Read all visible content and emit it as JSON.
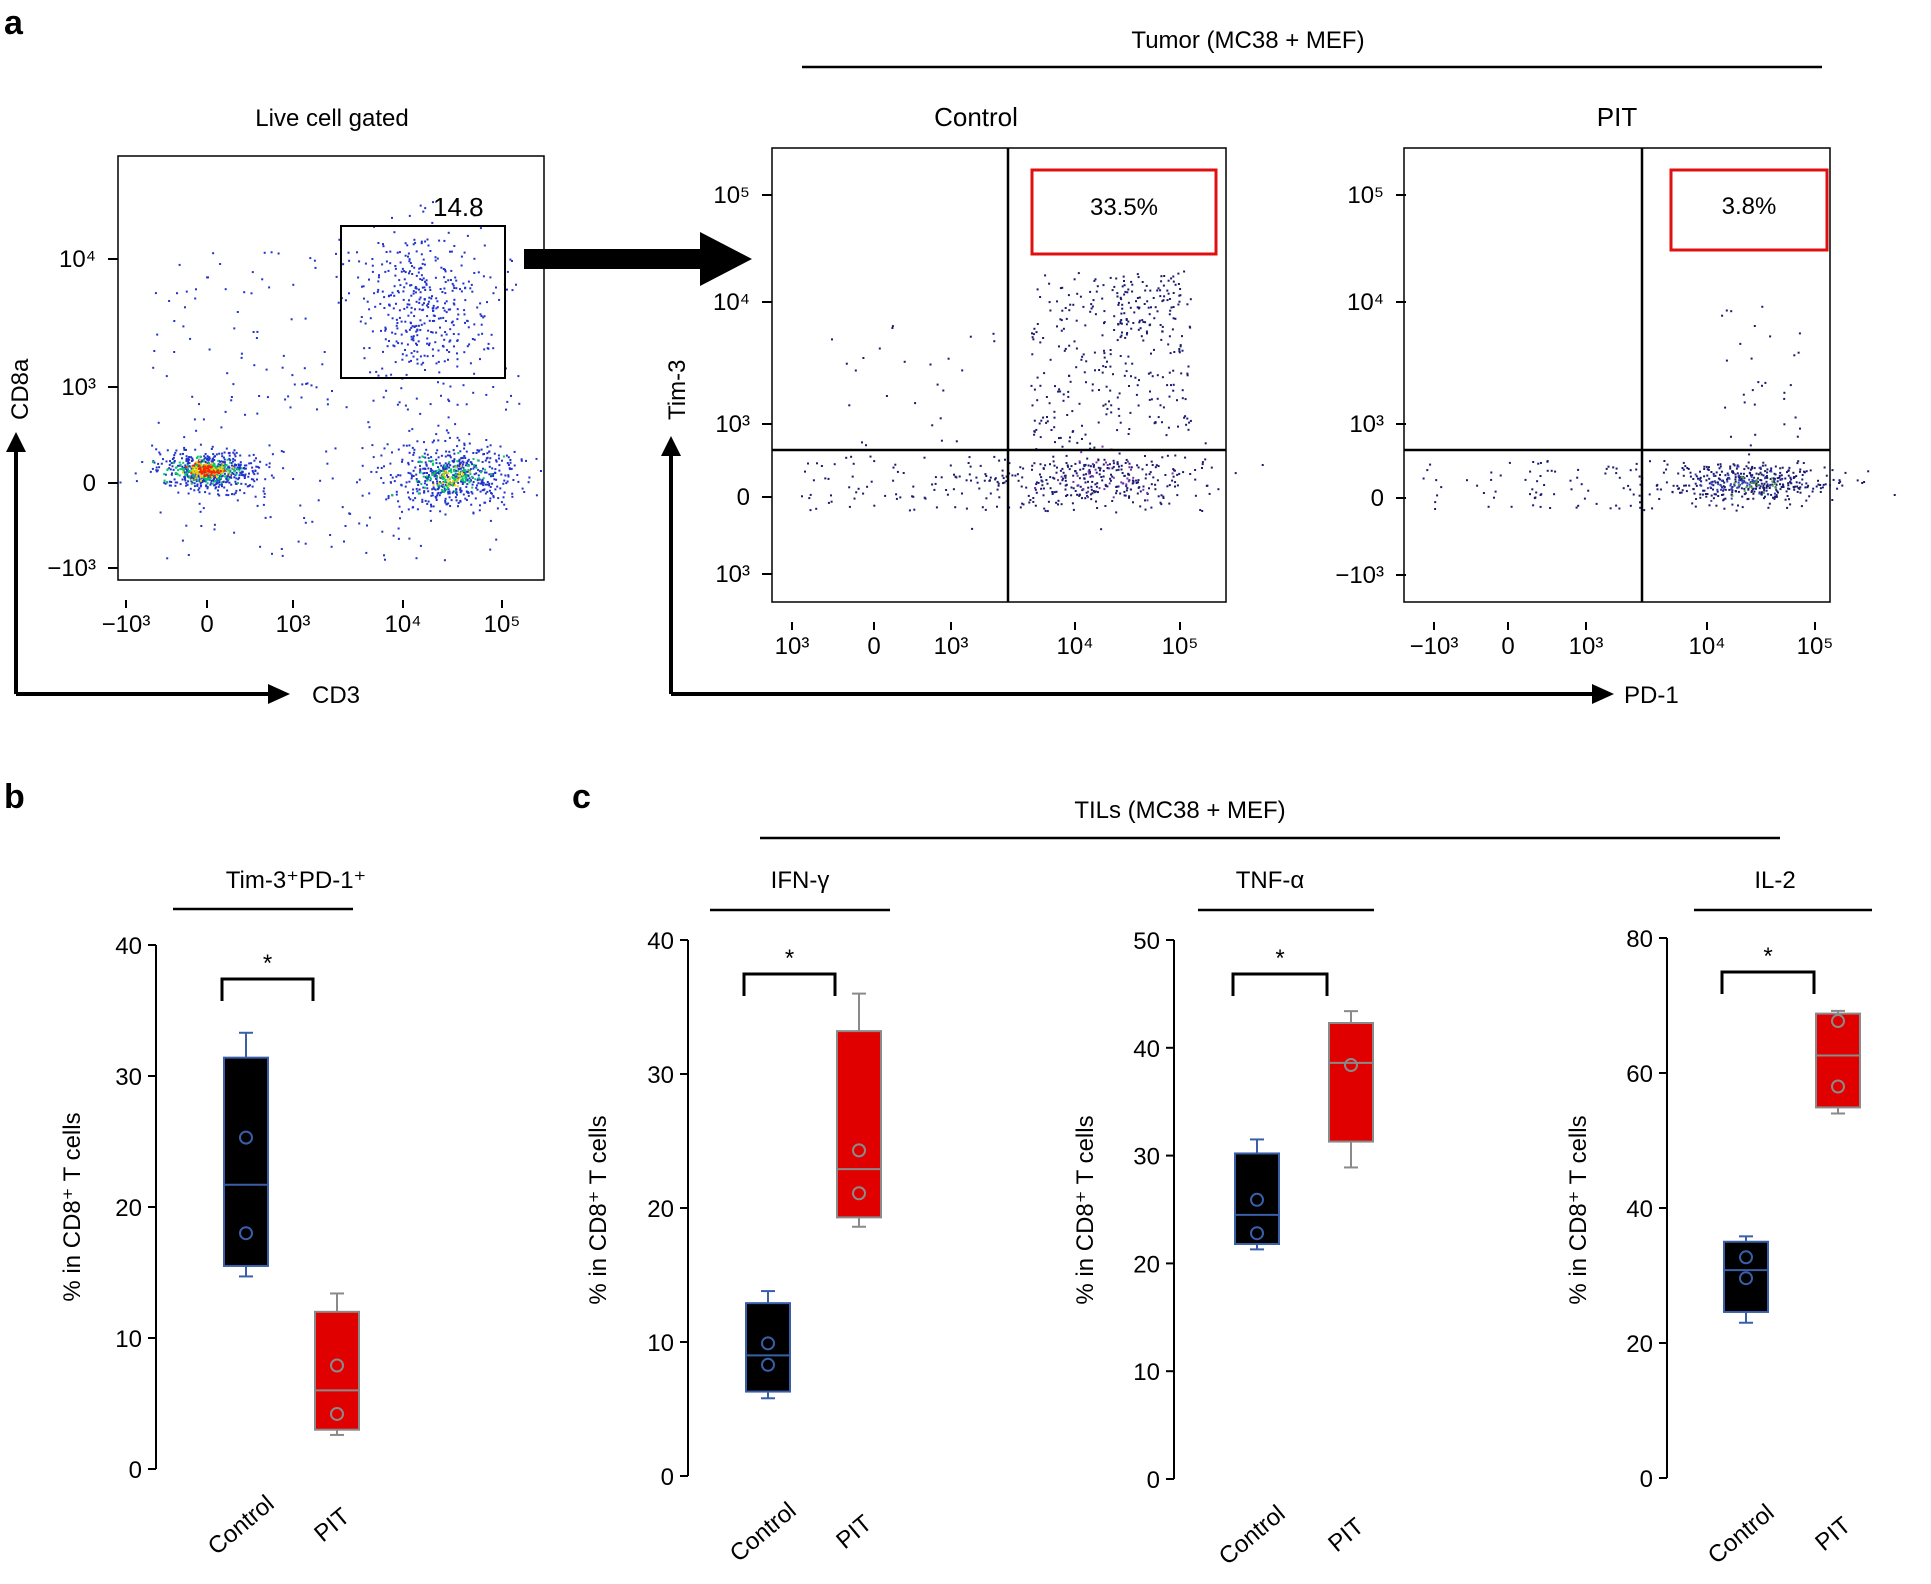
{
  "figure": {
    "panel_a_label": "a",
    "panel_b_label": "b",
    "panel_c_label": "c"
  },
  "chart_data": [
    {
      "type": "scatter",
      "panel": "a",
      "id": "flow-live",
      "title": "Live cell gated",
      "xlabel": "CD3",
      "ylabel": "CD8a",
      "x_ticks": [
        "−10³",
        "0",
        "10³",
        "10⁴",
        "10⁵"
      ],
      "y_ticks": [
        "−10³",
        "0",
        "10³",
        "10⁴"
      ],
      "gate_label": "14.8",
      "colors": {
        "dots": "#2233cc",
        "hot": "#ff2200",
        "warm": "#ffcc00",
        "mid": "#00cc66"
      }
    },
    {
      "type": "scatter",
      "panel": "a",
      "id": "flow-control",
      "group_title": "Tumor (MC38 + MEF)",
      "title": "Control",
      "xlabel": "PD-1",
      "ylabel": "Tim-3",
      "x_ticks": [
        "10³",
        "0",
        "10³",
        "10⁴",
        "10⁵"
      ],
      "y_ticks": [
        "10⁵",
        "10⁴",
        "10³",
        "0",
        "10³"
      ],
      "quadrant_label": "33.5%",
      "colors": {
        "gate": "#e01010",
        "dots": "#1a1a6e"
      }
    },
    {
      "type": "scatter",
      "panel": "a",
      "id": "flow-pit",
      "title": "PIT",
      "x_ticks": [
        "−10³",
        "0",
        "10³",
        "10⁴",
        "10⁵"
      ],
      "y_ticks": [
        "10⁵",
        "10⁴",
        "10³",
        "0",
        "−10³"
      ],
      "quadrant_label": "3.8%",
      "colors": {
        "gate": "#e01010",
        "dots": "#1a1a6e"
      }
    },
    {
      "type": "box",
      "panel": "b",
      "id": "box-tim3pd1",
      "title": "Tim-3⁺PD-1⁺",
      "ylabel": "% in CD8⁺ T cells",
      "ylim": [
        0,
        40
      ],
      "y_ticks": [
        0,
        10,
        20,
        30,
        40
      ],
      "categories": [
        "Control",
        "PIT"
      ],
      "significance": "*",
      "boxes": [
        {
          "name": "Control",
          "min": 14.7,
          "q1": 15.5,
          "median": 21.7,
          "q3": 31.4,
          "max": 33.3,
          "points": [
            25.3,
            18.0
          ],
          "fill": "#000000",
          "edge": "#3a5fa8"
        },
        {
          "name": "PIT",
          "min": 2.6,
          "q1": 3.0,
          "median": 6.0,
          "q3": 12.0,
          "max": 13.4,
          "points": [
            7.9,
            4.2
          ],
          "fill": "#e00000",
          "edge": "#8a8a8a"
        }
      ]
    },
    {
      "type": "box",
      "panel": "c",
      "id": "box-ifng",
      "group_title": "TILs (MC38 + MEF)",
      "title": "IFN-γ",
      "ylabel": "% in CD8⁺ T cells",
      "ylim": [
        0,
        40
      ],
      "y_ticks": [
        0,
        10,
        20,
        30,
        40
      ],
      "categories": [
        "Control",
        "PIT"
      ],
      "significance": "*",
      "boxes": [
        {
          "name": "Control",
          "min": 5.8,
          "q1": 6.3,
          "median": 9.0,
          "q3": 12.9,
          "max": 13.8,
          "points": [
            9.9,
            8.3
          ],
          "fill": "#000000",
          "edge": "#3a5fa8"
        },
        {
          "name": "PIT",
          "min": 18.6,
          "q1": 19.3,
          "median": 22.9,
          "q3": 33.2,
          "max": 36.0,
          "points": [
            24.3,
            21.1
          ],
          "fill": "#e00000",
          "edge": "#8a8a8a"
        }
      ]
    },
    {
      "type": "box",
      "panel": "c",
      "id": "box-tnfa",
      "title": "TNF-α",
      "ylabel": "% in CD8⁺ T cells",
      "ylim": [
        0,
        50
      ],
      "y_ticks": [
        0,
        10,
        20,
        30,
        40,
        50
      ],
      "categories": [
        "Control",
        "PIT"
      ],
      "significance": "*",
      "boxes": [
        {
          "name": "Control",
          "min": 21.3,
          "q1": 21.8,
          "median": 24.5,
          "q3": 30.2,
          "max": 31.5,
          "points": [
            25.9,
            22.8
          ],
          "fill": "#000000",
          "edge": "#3a5fa8"
        },
        {
          "name": "PIT",
          "min": 28.9,
          "q1": 31.3,
          "median": 38.6,
          "q3": 42.3,
          "max": 43.4,
          "points": [
            38.4
          ],
          "fill": "#e00000",
          "edge": "#8a8a8a"
        }
      ]
    },
    {
      "type": "box",
      "panel": "c",
      "id": "box-il2",
      "title": "IL-2",
      "ylabel": "% in CD8⁺ T cells",
      "ylim": [
        0,
        80
      ],
      "y_ticks": [
        0,
        20,
        40,
        60,
        80
      ],
      "categories": [
        "Control",
        "PIT"
      ],
      "significance": "*",
      "boxes": [
        {
          "name": "Control",
          "min": 23.0,
          "q1": 24.6,
          "median": 30.8,
          "q3": 35.0,
          "max": 35.8,
          "points": [
            32.7,
            29.6
          ],
          "fill": "#000000",
          "edge": "#3a5fa8"
        },
        {
          "name": "PIT",
          "min": 54.0,
          "q1": 54.9,
          "median": 62.6,
          "q3": 68.8,
          "max": 69.2,
          "points": [
            67.7,
            58.0
          ],
          "fill": "#e00000",
          "edge": "#8a8a8a"
        }
      ]
    }
  ]
}
